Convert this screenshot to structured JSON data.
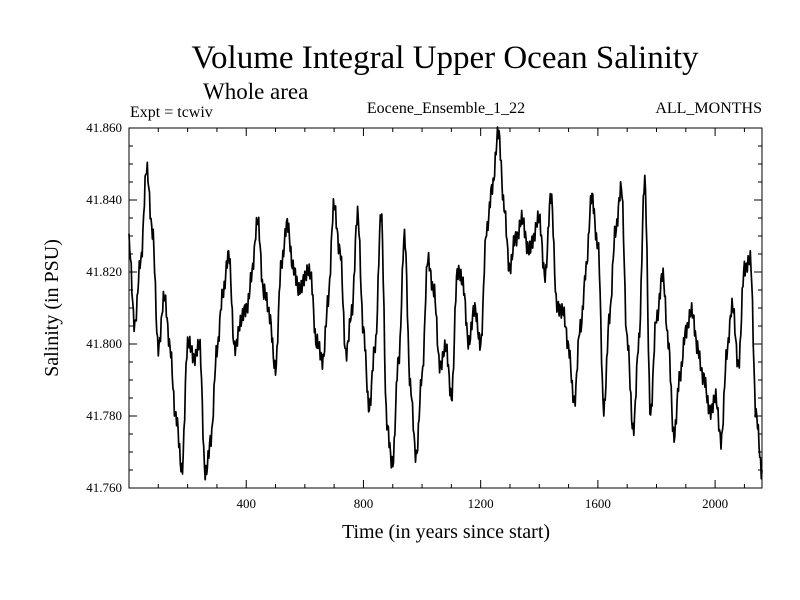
{
  "chart_data": {
    "type": "line",
    "title": "Volume Integral Upper Ocean Salinity",
    "subtitle": "Whole area",
    "expt_label": "Expt = tcwiv",
    "ensemble_label": "Eocene_Ensemble_1_22",
    "months_label": "ALL_MONTHS",
    "xlabel": "Time (in years since start)",
    "ylabel": "Salinity (in PSU)",
    "xlim": [
      0,
      2160
    ],
    "ylim": [
      41.76,
      41.86
    ],
    "xticks": [
      400,
      800,
      1200,
      1600,
      2000
    ],
    "yticks": [
      41.76,
      41.78,
      41.8,
      41.82,
      41.84,
      41.86
    ],
    "ytick_labels": [
      "41.760",
      "41.780",
      "41.800",
      "41.820",
      "41.840",
      "41.860"
    ],
    "grid": false,
    "series": [
      {
        "x": [
          0,
          20,
          40,
          60,
          80,
          100,
          120,
          140,
          160,
          180,
          200,
          220,
          240,
          260,
          280,
          300,
          320,
          340,
          360,
          380,
          400,
          420,
          440,
          460,
          480,
          500,
          520,
          540,
          560,
          580,
          600,
          620,
          640,
          660,
          680,
          700,
          720,
          740,
          760,
          780,
          800,
          820,
          840,
          860,
          880,
          900,
          920,
          940,
          960,
          980,
          1000,
          1020,
          1040,
          1060,
          1080,
          1100,
          1120,
          1140,
          1160,
          1180,
          1200,
          1220,
          1240,
          1260,
          1280,
          1300,
          1320,
          1340,
          1360,
          1380,
          1400,
          1420,
          1440,
          1460,
          1480,
          1500,
          1520,
          1540,
          1560,
          1580,
          1600,
          1620,
          1640,
          1660,
          1680,
          1700,
          1720,
          1740,
          1760,
          1780,
          1800,
          1820,
          1840,
          1860,
          1880,
          1900,
          1920,
          1940,
          1960,
          1980,
          2000,
          2020,
          2040,
          2060,
          2080,
          2100,
          2120,
          2140,
          2160
        ],
        "values": [
          41.828,
          41.806,
          41.822,
          41.85,
          41.83,
          41.8,
          41.812,
          41.8,
          41.779,
          41.765,
          41.8,
          41.796,
          41.801,
          41.763,
          41.775,
          41.797,
          41.815,
          41.824,
          41.8,
          41.805,
          41.81,
          41.82,
          41.834,
          41.815,
          41.807,
          41.794,
          41.821,
          41.835,
          41.82,
          41.816,
          41.818,
          41.82,
          41.8,
          41.795,
          41.813,
          41.838,
          41.827,
          41.796,
          41.81,
          41.835,
          41.805,
          41.781,
          41.8,
          41.836,
          41.778,
          41.767,
          41.795,
          41.831,
          41.787,
          41.77,
          41.79,
          41.825,
          41.814,
          41.795,
          41.799,
          41.785,
          41.82,
          41.816,
          41.801,
          41.809,
          41.801,
          41.83,
          41.845,
          41.858,
          41.839,
          41.82,
          41.83,
          41.835,
          41.826,
          41.83,
          41.834,
          41.82,
          41.84,
          41.812,
          41.808,
          41.8,
          41.783,
          41.805,
          41.821,
          41.841,
          41.828,
          41.781,
          41.809,
          41.83,
          41.845,
          41.8,
          41.777,
          41.8,
          41.846,
          41.78,
          41.807,
          41.82,
          41.8,
          41.775,
          41.79,
          41.805,
          41.808,
          41.8,
          41.79,
          41.782,
          41.785,
          41.773,
          41.798,
          41.81,
          41.795,
          41.82,
          41.825,
          41.779,
          41.765
        ]
      }
    ]
  }
}
